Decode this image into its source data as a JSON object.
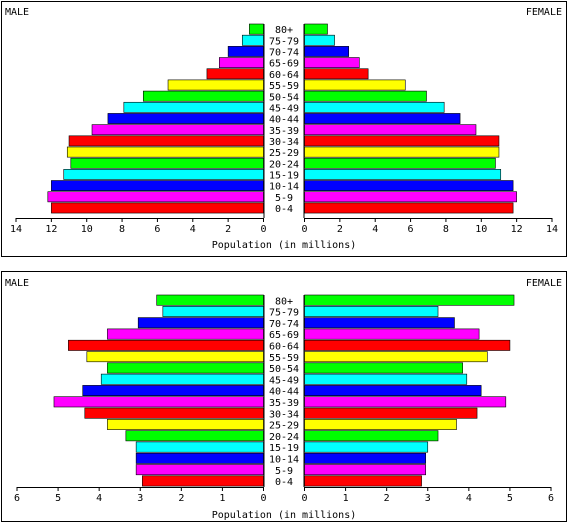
{
  "chart_data": [
    {
      "type": "bar",
      "left_label": "MALE",
      "right_label": "FEMALE",
      "xlabel": "Population (in millions)",
      "xlim": [
        0,
        14
      ],
      "ticks": [
        "14",
        "12",
        "10",
        "8",
        "6",
        "4",
        "2",
        "0",
        "0",
        "2",
        "4",
        "6",
        "8",
        "10",
        "12",
        "14"
      ],
      "categories": [
        "80+",
        "75-79",
        "70-74",
        "65-69",
        "60-64",
        "55-59",
        "50-54",
        "45-49",
        "40-44",
        "35-39",
        "30-34",
        "25-29",
        "20-24",
        "15-19",
        "10-14",
        "5-9",
        "0-4"
      ],
      "series": [
        {
          "name": "MALE",
          "values": [
            0.8,
            1.2,
            2.0,
            2.5,
            3.2,
            5.4,
            6.8,
            7.9,
            8.8,
            9.7,
            11.0,
            11.1,
            10.9,
            11.3,
            12.0,
            12.2,
            12.0
          ]
        },
        {
          "name": "FEMALE",
          "values": [
            1.3,
            1.7,
            2.5,
            3.1,
            3.6,
            5.7,
            6.9,
            7.9,
            8.8,
            9.7,
            11.0,
            11.0,
            10.8,
            11.1,
            11.8,
            12.0,
            11.8
          ]
        }
      ]
    },
    {
      "type": "bar",
      "left_label": "MALE",
      "right_label": "FEMALE",
      "xlabel": "Population (in millions)",
      "xlim": [
        0,
        6
      ],
      "ticks": [
        "6",
        "5",
        "4",
        "3",
        "2",
        "1",
        "0",
        "0",
        "1",
        "2",
        "3",
        "4",
        "5",
        "6"
      ],
      "categories": [
        "80+",
        "75-79",
        "70-74",
        "65-69",
        "60-64",
        "55-59",
        "50-54",
        "45-49",
        "40-44",
        "35-39",
        "30-34",
        "25-29",
        "20-24",
        "15-19",
        "10-14",
        "5-9",
        "0-4"
      ],
      "series": [
        {
          "name": "MALE",
          "values": [
            2.6,
            2.45,
            3.05,
            3.8,
            4.75,
            4.3,
            3.8,
            3.95,
            4.4,
            5.1,
            4.35,
            3.8,
            3.35,
            3.1,
            3.1,
            3.1,
            2.95
          ]
        },
        {
          "name": "FEMALE",
          "values": [
            5.1,
            3.25,
            3.65,
            4.25,
            5.0,
            4.45,
            3.85,
            3.95,
            4.3,
            4.9,
            4.2,
            3.7,
            3.25,
            3.0,
            2.95,
            2.95,
            2.85
          ]
        }
      ]
    }
  ],
  "colors": [
    "#00FF00",
    "#00FFFF",
    "#0000FF",
    "#FF00FF",
    "#FF0000",
    "#FFFF00",
    "#00FF00",
    "#00FFFF",
    "#0000FF",
    "#FF00FF",
    "#FF0000",
    "#FFFF00",
    "#00FF00",
    "#00FFFF",
    "#0000FF",
    "#FF00FF",
    "#FF0000"
  ]
}
